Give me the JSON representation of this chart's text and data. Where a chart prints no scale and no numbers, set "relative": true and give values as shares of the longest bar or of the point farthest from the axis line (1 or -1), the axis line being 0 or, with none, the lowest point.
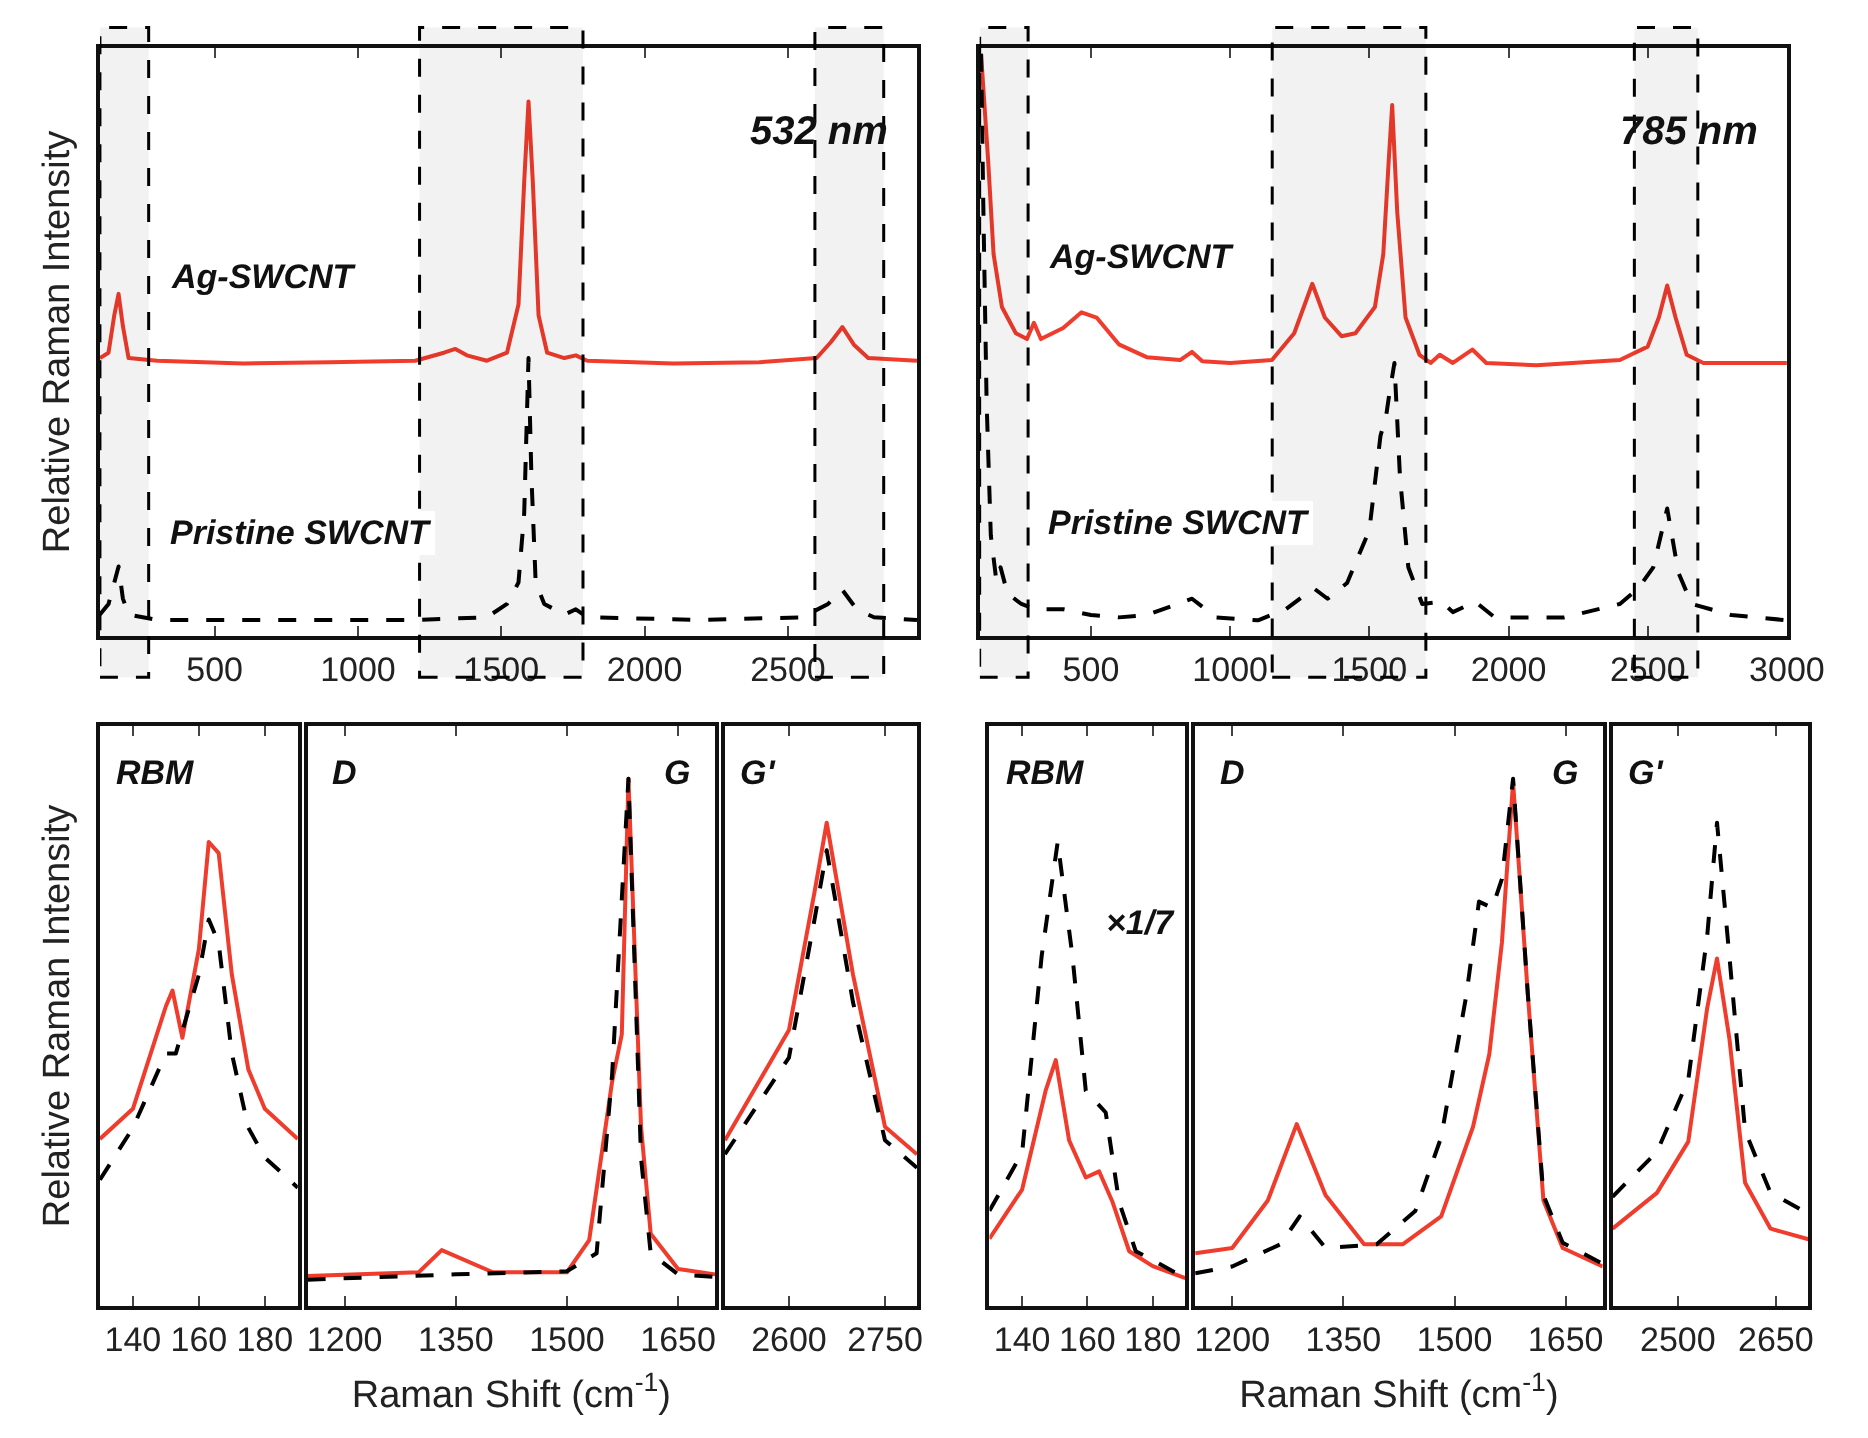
{
  "chart_data": [
    {
      "type": "line",
      "relative": true,
      "ylabel": "Relative Raman Intensity",
      "annotations": [
        "532 nm"
      ],
      "xlim": [
        100,
        2950
      ],
      "xticks": [
        500,
        1000,
        1500,
        2000,
        2500
      ],
      "tick_labels": "x",
      "grid": false,
      "legend": false,
      "bands": [
        {
          "axis": "x",
          "from": 100,
          "to": 270,
          "color": "#000000"
        },
        {
          "axis": "x",
          "from": 1215,
          "to": 1785,
          "color": "#000000"
        },
        {
          "axis": "x",
          "from": 2594,
          "to": 2834,
          "color": "#000000"
        }
      ],
      "series": [
        {
          "name": "Ag-SWCNT",
          "color": "#f03c2c",
          "line_style": "solid",
          "x": [
            100,
            130,
            150,
            165,
            180,
            200,
            300,
            600,
            900,
            1200,
            1300,
            1340,
            1380,
            1450,
            1520,
            1560,
            1580,
            1595,
            1610,
            1630,
            1660,
            1720,
            1760,
            1800,
            2100,
            2400,
            2600,
            2650,
            2690,
            2730,
            2780,
            2950
          ],
          "values": [
            0.52,
            0.53,
            0.6,
            0.64,
            0.58,
            0.52,
            0.515,
            0.51,
            0.512,
            0.515,
            0.53,
            0.537,
            0.525,
            0.515,
            0.53,
            0.62,
            0.85,
            1.0,
            0.85,
            0.6,
            0.53,
            0.52,
            0.525,
            0.515,
            0.51,
            0.512,
            0.52,
            0.55,
            0.578,
            0.545,
            0.52,
            0.515
          ]
        },
        {
          "name": "Pristine SWCNT",
          "color": "#000000",
          "line_style": "dashed",
          "x": [
            100,
            130,
            150,
            165,
            180,
            200,
            300,
            800,
            1200,
            1450,
            1520,
            1560,
            1580,
            1595,
            1605,
            1620,
            1650,
            1720,
            1760,
            1800,
            2200,
            2550,
            2640,
            2690,
            2740,
            2800,
            2950
          ],
          "values": [
            0.04,
            0.06,
            0.1,
            0.13,
            0.07,
            0.04,
            0.03,
            0.03,
            0.03,
            0.035,
            0.06,
            0.1,
            0.23,
            0.52,
            0.3,
            0.1,
            0.06,
            0.04,
            0.05,
            0.035,
            0.03,
            0.035,
            0.06,
            0.086,
            0.05,
            0.035,
            0.03
          ]
        }
      ]
    },
    {
      "type": "line",
      "relative": true,
      "annotations": [
        "785 nm"
      ],
      "xlim": [
        100,
        3000
      ],
      "xticks": [
        500,
        1000,
        1500,
        2000,
        2500,
        3000
      ],
      "tick_labels": "x",
      "grid": false,
      "legend": false,
      "bands": [
        {
          "axis": "x",
          "from": 100,
          "to": 274,
          "color": "#000000"
        },
        {
          "axis": "x",
          "from": 1151,
          "to": 1703,
          "color": "#000000"
        },
        {
          "axis": "x",
          "from": 2452,
          "to": 2680,
          "color": "#000000"
        }
      ],
      "series": [
        {
          "name": "Ag-SWCNT",
          "color": "#f03c2c",
          "line_style": "solid",
          "x": [
            105,
            130,
            150,
            180,
            230,
            270,
            295,
            320,
            400,
            466,
            520,
            600,
            700,
            820,
            863,
            900,
            1000,
            1150,
            1230,
            1295,
            1340,
            1400,
            1450,
            1520,
            1550,
            1570,
            1582,
            1600,
            1630,
            1680,
            1720,
            1753,
            1800,
            1870,
            1920,
            2100,
            2400,
            2500,
            2540,
            2570,
            2600,
            2640,
            2700,
            3000
          ],
          "values": [
            1,
            0.82,
            0.656,
            0.565,
            0.52,
            0.51,
            0.538,
            0.51,
            0.529,
            0.556,
            0.547,
            0.501,
            0.479,
            0.474,
            0.488,
            0.472,
            0.469,
            0.474,
            0.52,
            0.605,
            0.547,
            0.515,
            0.52,
            0.565,
            0.656,
            0.82,
            0.912,
            0.729,
            0.547,
            0.483,
            0.469,
            0.483,
            0.469,
            0.492,
            0.469,
            0.465,
            0.474,
            0.497,
            0.547,
            0.602,
            0.547,
            0.483,
            0.469,
            0.469
          ]
        },
        {
          "name": "Pristine SWCNT",
          "color": "#000000",
          "line_style": "dashed",
          "x": [
            105,
            113,
            125,
            140,
            160,
            175,
            200,
            250,
            300,
            400,
            500,
            600,
            700,
            863,
            950,
            1100,
            1200,
            1300,
            1350,
            1420,
            1500,
            1540,
            1560,
            1570,
            1590,
            1610,
            1640,
            1690,
            1760,
            1800,
            1880,
            1950,
            2200,
            2400,
            2466,
            2520,
            2570,
            2610,
            2658,
            2800,
            3000
          ],
          "values": [
            1,
            0.743,
            0.401,
            0.173,
            0.095,
            0.118,
            0.073,
            0.055,
            0.046,
            0.046,
            0.036,
            0.032,
            0.036,
            0.064,
            0.032,
            0.027,
            0.046,
            0.082,
            0.064,
            0.091,
            0.182,
            0.344,
            0.377,
            0.41,
            0.469,
            0.273,
            0.118,
            0.055,
            0.059,
            0.041,
            0.059,
            0.032,
            0.032,
            0.055,
            0.082,
            0.118,
            0.219,
            0.109,
            0.055,
            0.036,
            0.027
          ]
        }
      ]
    },
    {
      "type": "line",
      "relative": true,
      "ylabel": "Relative Raman Intensity",
      "annotations": [
        "RBM"
      ],
      "xlim": [
        130,
        190
      ],
      "xticks": [
        140,
        160,
        180
      ],
      "tick_labels": "x",
      "grid": false,
      "legend": false,
      "series": [
        {
          "color": "#f03c2c",
          "line_style": "solid",
          "x": [
            130,
            140,
            150,
            152,
            155,
            160,
            163,
            166,
            170,
            175,
            180,
            190
          ],
          "values": [
            0.36,
            0.425,
            0.646,
            0.68,
            0.578,
            0.769,
            1,
            0.976,
            0.714,
            0.51,
            0.425,
            0.36
          ]
        },
        {
          "color": "#000000",
          "line_style": "dashed",
          "x": [
            130,
            140,
            150,
            153,
            160,
            163,
            166,
            170,
            175,
            180,
            190
          ],
          "values": [
            0.272,
            0.384,
            0.544,
            0.544,
            0.714,
            0.833,
            0.782,
            0.544,
            0.384,
            0.32,
            0.255
          ]
        }
      ]
    },
    {
      "type": "line",
      "relative": true,
      "xlabel": "Raman Shift (cm$^{-1}$)",
      "annotations": [
        "D",
        "G"
      ],
      "xlim": [
        1150,
        1700
      ],
      "xticks": [
        1200,
        1350,
        1500,
        1650
      ],
      "tick_labels": "x",
      "grid": false,
      "legend": false,
      "series": [
        {
          "color": "#f03c2c",
          "line_style": "solid",
          "x": [
            1150,
            1300,
            1331,
            1400,
            1500,
            1530,
            1561,
            1574,
            1583,
            1600,
            1613,
            1650,
            1700
          ],
          "values": [
            0.057,
            0.064,
            0.106,
            0.064,
            0.064,
            0.125,
            0.426,
            0.515,
            1.0,
            0.34,
            0.137,
            0.07,
            0.06
          ]
        },
        {
          "color": "#000000",
          "line_style": "dashed",
          "x": [
            1150,
            1350,
            1500,
            1540,
            1561,
            1583,
            1600,
            1613,
            1650,
            1700
          ],
          "values": [
            0.05,
            0.06,
            0.066,
            0.1,
            0.44,
            1.0,
            0.28,
            0.1,
            0.06,
            0.055
          ]
        }
      ]
    },
    {
      "type": "line",
      "relative": true,
      "annotations": [
        "G'"
      ],
      "xlim": [
        2500,
        2800
      ],
      "xticks": [
        2600,
        2750
      ],
      "tick_labels": "x",
      "grid": false,
      "legend": false,
      "series": [
        {
          "color": "#f03c2c",
          "line_style": "solid",
          "x": [
            2500,
            2600,
            2640,
            2659,
            2700,
            2750,
            2800
          ],
          "values": [
            0.343,
            0.571,
            0.857,
            1,
            0.686,
            0.371,
            0.314
          ]
        },
        {
          "color": "#000000",
          "line_style": "dashed",
          "x": [
            2500,
            2600,
            2640,
            2659,
            2700,
            2750,
            2800
          ],
          "values": [
            0.314,
            0.514,
            0.8,
            0.943,
            0.629,
            0.343,
            0.286
          ]
        }
      ]
    },
    {
      "type": "line",
      "relative": true,
      "annotations": [
        "RBM",
        "×1/7"
      ],
      "xlim": [
        130,
        190
      ],
      "xticks": [
        140,
        160,
        180
      ],
      "tick_labels": "x",
      "grid": false,
      "legend": false,
      "series": [
        {
          "color": "#f03c2c",
          "line_style": "solid",
          "x": [
            130,
            140,
            147.2,
            150.3,
            154.4,
            159.5,
            163.6,
            167.7,
            172.8,
            180,
            190
          ],
          "values": [
            0.145,
            0.251,
            0.464,
            0.53,
            0.357,
            0.277,
            0.29,
            0.224,
            0.118,
            0.086,
            0.06
          ]
        },
        {
          "color": "#000000",
          "line_style": "dashed",
          "x": [
            130,
            140,
            146,
            150.9,
            155.4,
            159.5,
            165.6,
            169.7,
            174.8,
            180,
            190
          ],
          "values": [
            0.205,
            0.33,
            0.755,
            1,
            0.755,
            0.464,
            0.417,
            0.224,
            0.118,
            0.099,
            0.06
          ]
        }
      ]
    },
    {
      "type": "line",
      "relative": true,
      "xlabel": "Raman Shift (cm$^{-1}$)",
      "annotations": [
        "D",
        "G"
      ],
      "xlim": [
        1150,
        1700
      ],
      "xticks": [
        1200,
        1350,
        1500,
        1650
      ],
      "tick_labels": "x",
      "grid": false,
      "legend": false,
      "series": [
        {
          "color": "#f03c2c",
          "line_style": "solid",
          "x": [
            1150,
            1200,
            1248,
            1287,
            1326,
            1378,
            1430,
            1482,
            1525,
            1547,
            1564,
            1579,
            1599,
            1620,
            1646,
            1700
          ],
          "values": [
            0.1,
            0.11,
            0.2,
            0.345,
            0.21,
            0.117,
            0.117,
            0.17,
            0.34,
            0.478,
            0.69,
            0.993,
            0.59,
            0.2,
            0.11,
            0.075
          ]
        },
        {
          "color": "#000000",
          "line_style": "dashed",
          "x": [
            1150,
            1200,
            1265,
            1291,
            1326,
            1395,
            1447,
            1482,
            1516,
            1533,
            1551,
            1564,
            1579,
            1599,
            1620,
            1646,
            1700
          ],
          "values": [
            0.062,
            0.075,
            0.117,
            0.17,
            0.11,
            0.117,
            0.18,
            0.32,
            0.59,
            0.767,
            0.755,
            0.81,
            1.0,
            0.59,
            0.21,
            0.12,
            0.08
          ]
        }
      ]
    },
    {
      "type": "line",
      "relative": true,
      "annotations": [
        "G'"
      ],
      "xlim": [
        2400,
        2700
      ],
      "xticks": [
        2500,
        2650
      ],
      "tick_labels": "x",
      "grid": false,
      "legend": false,
      "series": [
        {
          "color": "#f03c2c",
          "line_style": "solid",
          "x": [
            2400,
            2468,
            2516,
            2545,
            2560,
            2579,
            2603,
            2642,
            2700
          ],
          "values": [
            0.16,
            0.234,
            0.34,
            0.617,
            0.719,
            0.553,
            0.255,
            0.16,
            0.138
          ]
        },
        {
          "color": "#000000",
          "line_style": "dashed",
          "x": [
            2400,
            2468,
            2516,
            2545,
            2560,
            2579,
            2603,
            2642,
            2700
          ],
          "values": [
            0.226,
            0.319,
            0.468,
            0.766,
            1,
            0.723,
            0.362,
            0.234,
            0.191
          ]
        }
      ]
    }
  ]
}
